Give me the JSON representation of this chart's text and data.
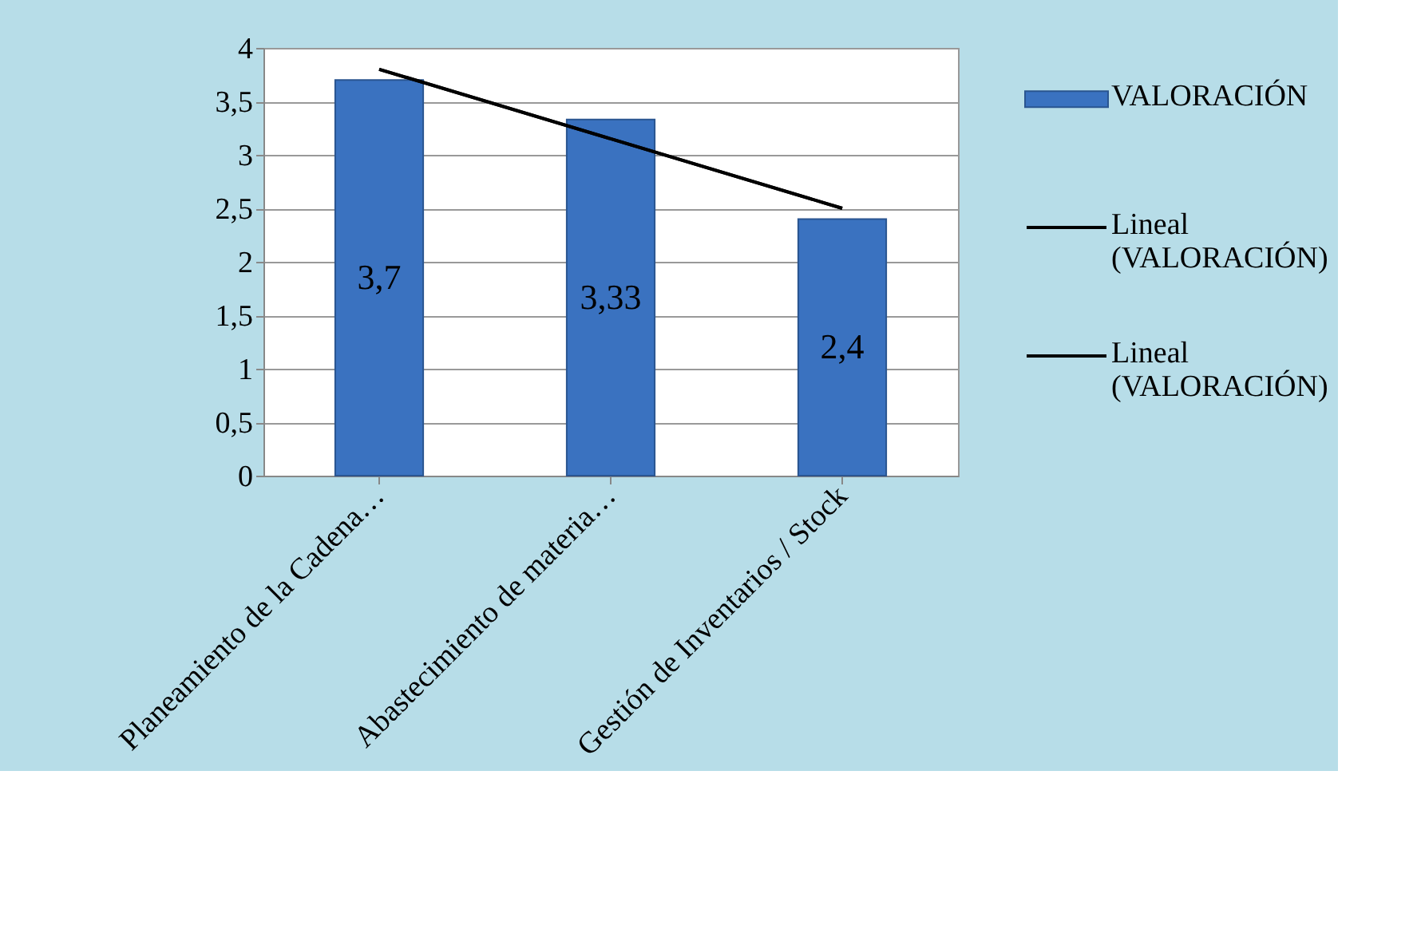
{
  "chart_data": {
    "type": "bar",
    "categories": [
      "Planeamiento de la Cadena…",
      "Abastecimiento de materia…",
      "Gestión de Inventarios / Stock"
    ],
    "series": [
      {
        "name": "VALORACIÓN",
        "color": "#3a72c0",
        "values": [
          3.7,
          3.33,
          2.4
        ],
        "value_labels": [
          "3,7",
          "3,33",
          "2,4"
        ]
      },
      {
        "name": "Lineal (VALORACIÓN)",
        "type": "line",
        "color": "#000000",
        "x": [
          "Planeamiento de la Cadena…",
          "Abastecimiento de materia…",
          "Gestión de Inventarios / Stock"
        ],
        "values": [
          3.8,
          3.15,
          2.5
        ]
      },
      {
        "name": "Lineal (VALORACIÓN)",
        "type": "line",
        "color": "#000000",
        "x": [
          "Planeamiento de la Cadena…",
          "Abastecimiento de materia…",
          "Gestión de Inventarios / Stock"
        ],
        "values": [
          3.8,
          3.15,
          2.5
        ]
      }
    ],
    "ylim": [
      0,
      4
    ],
    "yticks": [
      0,
      {
        "value": 0.5,
        "label": "0,5"
      },
      1,
      {
        "value": 1.5,
        "label": "1,5"
      },
      2,
      {
        "value": 2.5,
        "label": "2,5"
      },
      3,
      {
        "value": 3.5,
        "label": "3,5"
      },
      4
    ],
    "grid": "y",
    "legend": "right"
  }
}
